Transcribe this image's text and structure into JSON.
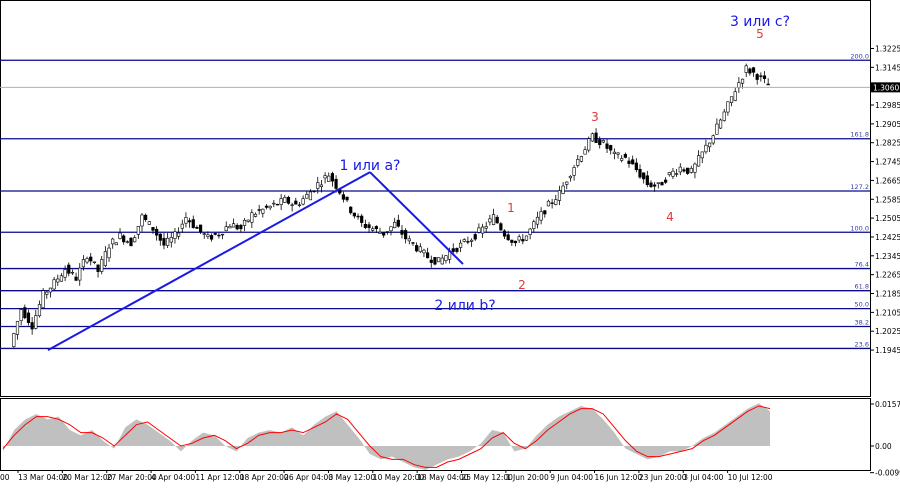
{
  "chart_data": [
    {
      "type": "candlestick",
      "instrument_hint": "GBP/USD 4H",
      "y_ticks": [
        "1.3225",
        "1.3145",
        "1.3060",
        "1.2985",
        "1.2905",
        "1.2825",
        "1.2745",
        "1.2665",
        "1.2585",
        "1.2505",
        "1.2425",
        "1.2345",
        "1.2265",
        "1.2185",
        "1.2105",
        "1.2025",
        "1.1945"
      ],
      "ylim": [
        1.1925,
        1.3255
      ],
      "current_price": "1.3060",
      "x_ticks": [
        "13 Mar 04:00",
        "20 Mar 12:00",
        "27 Mar 20:00",
        "4 Apr 04:00",
        "11 Apr 12:00",
        "18 Apr 20:00",
        "26 Apr 04:00",
        "3 May 12:00",
        "10 May 20:00",
        "18 May 04:00",
        "25 May 12:00",
        "1 Jun 20:00",
        "9 Jun 04:00",
        "16 Jun 12:00",
        "23 Jun 20:00",
        "3 Jul 04:00",
        "10 Jul 12:00"
      ],
      "x_first_partial": "00",
      "fib_levels": [
        {
          "label": "200.0",
          "price": 1.3175
        },
        {
          "label": "161.8",
          "price": 1.2842
        },
        {
          "label": "127.2",
          "price": 1.262
        },
        {
          "label": "100.0",
          "price": 1.2445
        },
        {
          "label": "76.4",
          "price": 1.2291
        },
        {
          "label": "61.8",
          "price": 1.2197
        },
        {
          "label": "50.0",
          "price": 1.2121
        },
        {
          "label": "38.2",
          "price": 1.2045
        },
        {
          "label": "23.6",
          "price": 1.1952
        }
      ],
      "close_series": [
        1.196,
        1.212,
        1.205,
        1.218,
        1.223,
        1.229,
        1.225,
        1.235,
        1.228,
        1.239,
        1.243,
        1.24,
        1.251,
        1.246,
        1.239,
        1.243,
        1.251,
        1.246,
        1.242,
        1.244,
        1.248,
        1.246,
        1.252,
        1.254,
        1.256,
        1.258,
        1.256,
        1.26,
        1.265,
        1.269,
        1.262,
        1.254,
        1.248,
        1.246,
        1.244,
        1.248,
        1.242,
        1.238,
        1.234,
        1.232,
        1.236,
        1.239,
        1.242,
        1.246,
        1.251,
        1.244,
        1.24,
        1.243,
        1.25,
        1.256,
        1.261,
        1.27,
        1.278,
        1.285,
        1.282,
        1.277,
        1.276,
        1.271,
        1.265,
        1.264,
        1.269,
        1.272,
        1.27,
        1.278,
        1.286,
        1.295,
        1.305,
        1.314,
        1.311,
        1.307
      ],
      "annotations": [
        {
          "text": "1 или a?",
          "color": "#1a1ae6"
        },
        {
          "text": "2 или b?",
          "color": "#1a1ae6"
        },
        {
          "text": "3 или c?",
          "color": "#1a1ae6"
        },
        {
          "text": "1",
          "color": "#e03a3a"
        },
        {
          "text": "2",
          "color": "#e03a3a"
        },
        {
          "text": "3",
          "color": "#e03a3a"
        },
        {
          "text": "4",
          "color": "#e03a3a"
        },
        {
          "text": "5",
          "color": "#e03a3a"
        }
      ],
      "trend_lines": [
        {
          "from": [
            "13 Mar 04:00",
            1.1945
          ],
          "to": [
            "10 May 20:00",
            1.27
          ]
        },
        {
          "from": [
            "10 May 20:00",
            1.27
          ],
          "to": [
            "25 May 12:00",
            1.231
          ]
        }
      ],
      "colors": {
        "fib_line": "#0a0a8a",
        "trend": "#1a1ae6",
        "wave_red": "#e03a3a",
        "candle": "#000000",
        "osc_fill": "#c0c0c0",
        "osc_signal": "#ff0000"
      }
    },
    {
      "type": "oscillator",
      "y_ticks": [
        "0.01574",
        "0.00",
        "-0.00999"
      ],
      "ylim": [
        -0.011,
        0.017
      ],
      "histogram": [
        -0.002,
        0.006,
        0.01,
        0.012,
        0.01,
        0.011,
        0.006,
        0.004,
        0.006,
        0.002,
        -0.001,
        0.007,
        0.01,
        0.008,
        0.005,
        0.002,
        -0.002,
        0.002,
        0.005,
        0.004,
        0.0,
        -0.002,
        0.003,
        0.005,
        0.006,
        0.005,
        0.007,
        0.004,
        0.008,
        0.011,
        0.013,
        0.008,
        0.003,
        -0.003,
        -0.005,
        -0.004,
        -0.006,
        -0.008,
        -0.009,
        -0.007,
        -0.005,
        -0.004,
        -0.002,
        0.001,
        0.006,
        0.005,
        -0.002,
        -0.001,
        0.004,
        0.008,
        0.011,
        0.013,
        0.015,
        0.014,
        0.01,
        0.005,
        -0.001,
        -0.003,
        -0.005,
        -0.004,
        -0.002,
        -0.002,
        0.0,
        0.003,
        0.005,
        0.008,
        0.011,
        0.014,
        0.016,
        0.013
      ],
      "signal": [
        -0.001,
        0.004,
        0.008,
        0.011,
        0.011,
        0.01,
        0.008,
        0.005,
        0.005,
        0.003,
        0.0,
        0.004,
        0.008,
        0.009,
        0.006,
        0.003,
        0.0,
        0.001,
        0.003,
        0.004,
        0.002,
        -0.001,
        0.001,
        0.004,
        0.005,
        0.005,
        0.006,
        0.005,
        0.007,
        0.009,
        0.012,
        0.01,
        0.005,
        0.0,
        -0.004,
        -0.005,
        -0.005,
        -0.007,
        -0.008,
        -0.008,
        -0.006,
        -0.005,
        -0.003,
        -0.001,
        0.003,
        0.005,
        0.001,
        -0.001,
        0.002,
        0.006,
        0.009,
        0.012,
        0.014,
        0.014,
        0.012,
        0.007,
        0.002,
        -0.002,
        -0.004,
        -0.004,
        -0.003,
        -0.002,
        -0.001,
        0.002,
        0.004,
        0.007,
        0.01,
        0.013,
        0.015,
        0.014
      ]
    }
  ]
}
